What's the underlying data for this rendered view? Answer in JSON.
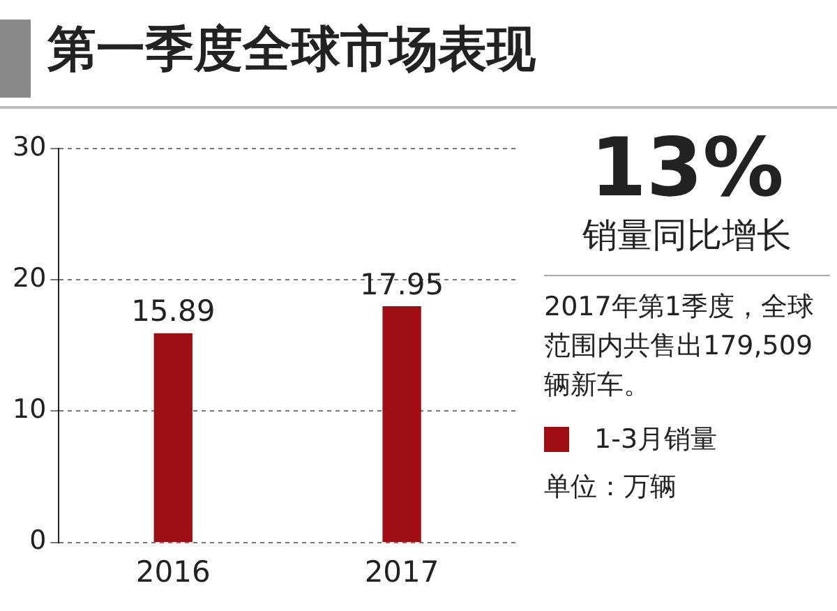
{
  "chart_data": {
    "type": "bar",
    "title": "第一季度全球市场表现",
    "categories": [
      "2016",
      "2017"
    ],
    "series": [
      {
        "name": "1-3月销量",
        "color": "#a00d12",
        "values": [
          15.89,
          17.95
        ]
      }
    ],
    "ylim": [
      0,
      30
    ],
    "yticks": [
      0,
      10,
      20,
      30
    ],
    "grid": "y",
    "data_labels": true,
    "legend": "right",
    "annotations": [
      "13%",
      "销量同比增长",
      "2017年第1季度，全球范围内共售出179,509辆新车。",
      "单位：万辆"
    ]
  }
}
